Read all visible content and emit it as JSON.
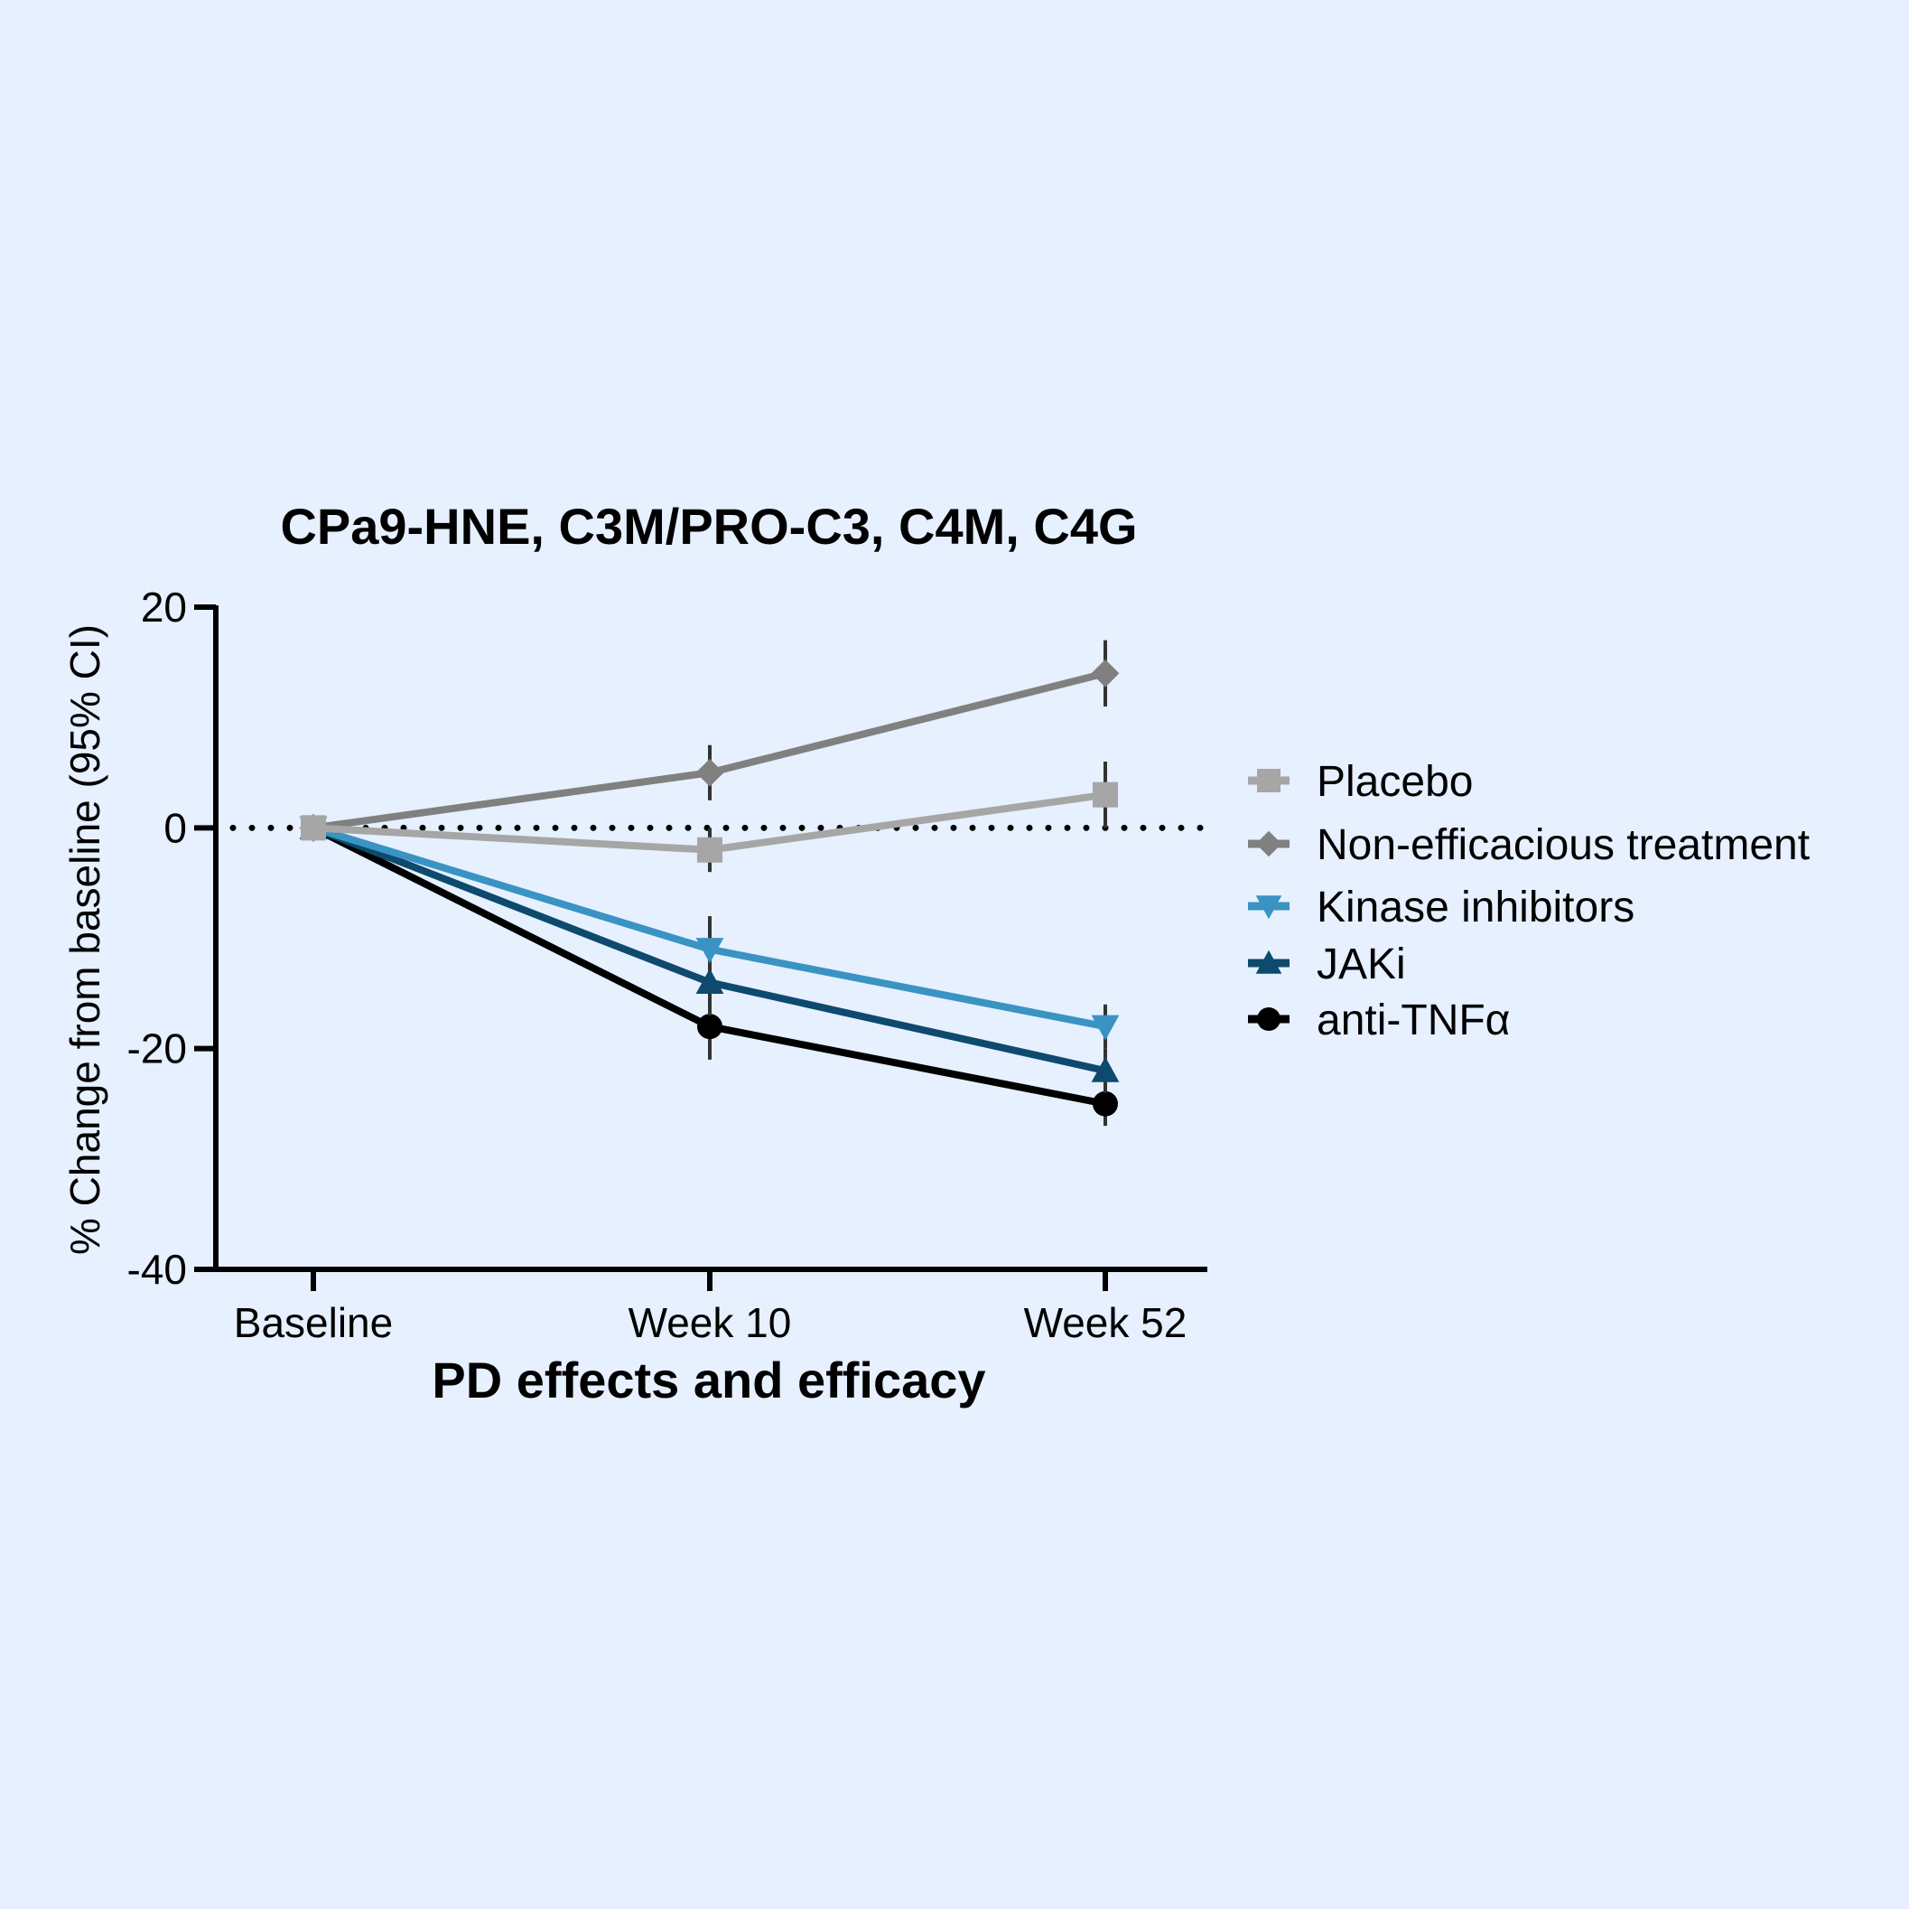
{
  "chart_data": {
    "type": "line",
    "title": "CPa9-HNE, C3M/PRO-C3, C4M, C4G",
    "xlabel": "PD effects and efficacy",
    "ylabel": "% Change from baseline (95% CI)",
    "categories": [
      "Baseline",
      "Week 10",
      "Week 52"
    ],
    "ylim": [
      -40,
      20
    ],
    "yticks": [
      20,
      0,
      -20,
      -40
    ],
    "ytick_labels": [
      "20",
      "0",
      "-20",
      "-40"
    ],
    "reference_line": {
      "y": 0,
      "style": "dotted"
    },
    "grid": false,
    "legend_position": "right",
    "series": [
      {
        "name": "Placebo",
        "marker": "square",
        "color": "#a6a6a6",
        "values": [
          0,
          -2,
          3
        ],
        "ci_low": [
          0,
          -4,
          0
        ],
        "ci_high": [
          0,
          0,
          6
        ]
      },
      {
        "name": "Non-efficacious treatment",
        "marker": "diamond",
        "color": "#808080",
        "values": [
          0,
          5,
          14
        ],
        "ci_low": [
          0,
          2.5,
          11
        ],
        "ci_high": [
          0,
          7.5,
          17
        ]
      },
      {
        "name": "Kinase inhibitors",
        "marker": "triangle-down",
        "color": "#3a93c3",
        "values": [
          0,
          -11,
          -18
        ],
        "ci_low": [
          0,
          -13,
          -20
        ],
        "ci_high": [
          0,
          -8,
          -16
        ]
      },
      {
        "name": "JAKi",
        "marker": "triangle-up",
        "color": "#0d4a6e",
        "values": [
          0,
          -14,
          -22
        ],
        "ci_low": [
          0,
          -17,
          -24
        ],
        "ci_high": [
          0,
          -11,
          -20
        ]
      },
      {
        "name": "anti-TNFα",
        "marker": "circle",
        "color": "#000000",
        "values": [
          0,
          -18,
          -25
        ],
        "ci_low": [
          0,
          -21,
          -27
        ],
        "ci_high": [
          0,
          -15,
          -23
        ]
      }
    ]
  }
}
